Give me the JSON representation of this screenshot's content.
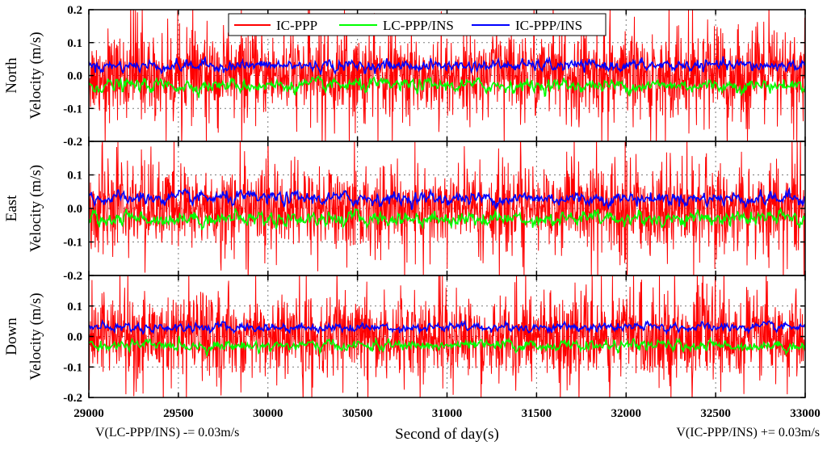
{
  "chart_data": {
    "type": "line",
    "xlabel": "Second of day(s)",
    "xlim": [
      29000,
      33000
    ],
    "x_ticks": [
      29000,
      29500,
      30000,
      30500,
      31000,
      31500,
      32000,
      32500,
      33000
    ],
    "x_tick_labels": [
      "29000",
      "29500",
      "30000",
      "30500",
      "31000",
      "31500",
      "32000",
      "32500",
      "33000"
    ],
    "ylim": [
      -0.2,
      0.2
    ],
    "y_ticks": [
      -0.2,
      -0.1,
      0.0,
      0.1,
      0.2
    ],
    "y_tick_labels": [
      "-0.2",
      "-0.1",
      "0.0",
      "0.1",
      "0.2"
    ],
    "grid": "dotted",
    "legend": {
      "placement": "top-center",
      "entries": [
        {
          "label": "IC-PPP",
          "color": "#ff0000"
        },
        {
          "label": "LC-PPP/INS",
          "color": "#00ff00"
        },
        {
          "label": "IC-PPP/INS",
          "color": "#0000ff"
        }
      ]
    },
    "annotations": {
      "left": "V(LC-PPP/INS) -= 0.03m/s",
      "right": "V(IC-PPP/INS) += 0.03m/s"
    },
    "panels": [
      {
        "name": "north",
        "ylabel_line1": "North",
        "ylabel_line2": "Velocity (m/s)",
        "series": [
          {
            "name": "IC-PPP",
            "color": "#ff0000",
            "mean": 0.0,
            "noise_std": 0.06,
            "amplitude_range": [
              -0.2,
              0.2
            ]
          },
          {
            "name": "LC-PPP/INS",
            "color": "#00ff00",
            "mean": -0.03,
            "noise_std": 0.008,
            "amplitude_range": [
              -0.06,
              0.0
            ]
          },
          {
            "name": "IC-PPP/INS",
            "color": "#0000ff",
            "mean": 0.03,
            "noise_std": 0.007,
            "amplitude_range": [
              0.01,
              0.06
            ]
          }
        ]
      },
      {
        "name": "east",
        "ylabel_line1": "East",
        "ylabel_line2": "Velocity (m/s)",
        "series": [
          {
            "name": "IC-PPP",
            "color": "#ff0000",
            "mean": 0.0,
            "noise_std": 0.06,
            "amplitude_range": [
              -0.2,
              0.2
            ]
          },
          {
            "name": "LC-PPP/INS",
            "color": "#00ff00",
            "mean": -0.03,
            "noise_std": 0.009,
            "amplitude_range": [
              -0.06,
              0.0
            ]
          },
          {
            "name": "IC-PPP/INS",
            "color": "#0000ff",
            "mean": 0.03,
            "noise_std": 0.008,
            "amplitude_range": [
              0.01,
              0.07
            ]
          }
        ]
      },
      {
        "name": "down",
        "ylabel_line1": "Down",
        "ylabel_line2": "Velocity (m/s)",
        "series": [
          {
            "name": "IC-PPP",
            "color": "#ff0000",
            "mean": 0.0,
            "noise_std": 0.065,
            "amplitude_range": [
              -0.2,
              0.2
            ]
          },
          {
            "name": "LC-PPP/INS",
            "color": "#00ff00",
            "mean": -0.03,
            "noise_std": 0.007,
            "amplitude_range": [
              -0.06,
              0.0
            ]
          },
          {
            "name": "IC-PPP/INS",
            "color": "#0000ff",
            "mean": 0.03,
            "noise_std": 0.006,
            "amplitude_range": [
              0.01,
              0.06
            ]
          }
        ]
      }
    ]
  }
}
